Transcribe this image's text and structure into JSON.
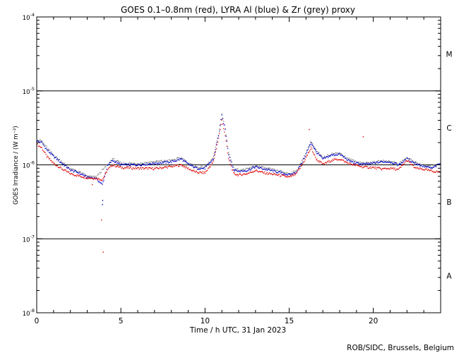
{
  "chart_data": {
    "type": "scatter",
    "title": "GOES 0.1–0.8nm (red), LYRA Al (blue) & Zr (grey) proxy",
    "xlabel": "Time / h UTC, 31 Jan 2023",
    "ylabel": "GOES Irradiance / (W m⁻²)",
    "credit": "ROB/SIDC, Brussels, Belgium",
    "xlim": [
      0,
      24
    ],
    "ylim_log10": [
      -8,
      -4
    ],
    "y_scale": "log",
    "x_ticks": [
      {
        "v": 0,
        "label": "0"
      },
      {
        "v": 5,
        "label": "5"
      },
      {
        "v": 10,
        "label": "10"
      },
      {
        "v": 15,
        "label": "15"
      },
      {
        "v": 20,
        "label": "20"
      }
    ],
    "y_ticks": [
      {
        "exp": -8,
        "label": "10",
        "sup": "-8"
      },
      {
        "exp": -7,
        "label": "10",
        "sup": "-7"
      },
      {
        "exp": -6,
        "label": "10",
        "sup": "-6"
      },
      {
        "exp": -5,
        "label": "10",
        "sup": "-5"
      },
      {
        "exp": -4,
        "label": "10",
        "sup": "-4"
      }
    ],
    "flare_classes": [
      {
        "label": "A",
        "exp": -7.5
      },
      {
        "label": "B",
        "exp": -6.5
      },
      {
        "label": "C",
        "exp": -5.5
      },
      {
        "label": "M",
        "exp": -4.5
      }
    ],
    "threshold_lines": [
      -7,
      -6,
      -5
    ],
    "series": [
      {
        "name": "GOES",
        "color": "#e00000",
        "points": [
          [
            0,
            1.9e-06
          ],
          [
            0.3,
            1.7e-06
          ],
          [
            0.6,
            1.3e-06
          ],
          [
            1,
            1.05e-06
          ],
          [
            1.5,
            8.8e-07
          ],
          [
            2,
            7.6e-07
          ],
          [
            2.5,
            7.1e-07
          ],
          [
            3,
            6.7e-07
          ],
          [
            3.5,
            6.6e-07
          ],
          [
            3.9,
            6.3e-07
          ],
          [
            4.2,
            8.5e-07
          ],
          [
            4.5,
            1e-06
          ],
          [
            5,
            9.2e-07
          ],
          [
            6,
            9e-07
          ],
          [
            7,
            8.9e-07
          ],
          [
            8,
            9.5e-07
          ],
          [
            8.6,
            1e-06
          ],
          [
            9,
            8.9e-07
          ],
          [
            9.5,
            7.9e-07
          ],
          [
            10,
            7.8e-07
          ],
          [
            10.5,
            1.1e-06
          ],
          [
            10.8,
            2.3e-06
          ],
          [
            11,
            4e-06
          ],
          [
            11.2,
            2.5e-06
          ],
          [
            11.4,
            1.2e-06
          ],
          [
            11.7,
            7.6e-07
          ],
          [
            12,
            7.3e-07
          ],
          [
            12.5,
            7.6e-07
          ],
          [
            13,
            8.4e-07
          ],
          [
            13.5,
            7.8e-07
          ],
          [
            14,
            7.5e-07
          ],
          [
            14.5,
            7.2e-07
          ],
          [
            15,
            6.8e-07
          ],
          [
            15.4,
            7.5e-07
          ],
          [
            15.7,
            9.4e-07
          ],
          [
            16,
            1.25e-06
          ],
          [
            16.3,
            1.7e-06
          ],
          [
            16.6,
            1.2e-06
          ],
          [
            17,
            1.02e-06
          ],
          [
            17.5,
            1.15e-06
          ],
          [
            18,
            1.2e-06
          ],
          [
            18.5,
            1.05e-06
          ],
          [
            19,
            9.8e-07
          ],
          [
            19.5,
            9.3e-07
          ],
          [
            20,
            9.2e-07
          ],
          [
            20.5,
            8.8e-07
          ],
          [
            21,
            9e-07
          ],
          [
            21.5,
            8.6e-07
          ],
          [
            22,
            1.15e-06
          ],
          [
            22.5,
            9e-07
          ],
          [
            23,
            8.7e-07
          ],
          [
            23.5,
            8.2e-07
          ],
          [
            24,
            8e-07
          ]
        ],
        "isolated": [
          [
            3.3,
            5.4e-07
          ],
          [
            3.85,
            1.8e-07
          ],
          [
            3.95,
            6.6e-08
          ],
          [
            16.2,
            3e-06
          ],
          [
            19.4,
            2.4e-06
          ]
        ]
      },
      {
        "name": "LYRA Al",
        "color": "#0000cc",
        "points": [
          [
            0,
            2.1e-06
          ],
          [
            0.3,
            2e-06
          ],
          [
            0.6,
            1.6e-06
          ],
          [
            1,
            1.3e-06
          ],
          [
            1.5,
            1.05e-06
          ],
          [
            2,
            8.5e-07
          ],
          [
            2.5,
            7.8e-07
          ],
          [
            3,
            6.8e-07
          ],
          [
            3.5,
            6.6e-07
          ],
          [
            3.9,
            5.4e-07
          ],
          [
            4.2,
            9.6e-07
          ],
          [
            4.5,
            1.15e-06
          ],
          [
            5,
            1e-06
          ],
          [
            6,
            1e-06
          ],
          [
            7,
            1.05e-06
          ],
          [
            8,
            1.1e-06
          ],
          [
            8.6,
            1.2e-06
          ],
          [
            9,
            1.02e-06
          ],
          [
            9.5,
            9e-07
          ],
          [
            10,
            9e-07
          ],
          [
            10.5,
            1.2e-06
          ],
          [
            10.8,
            2.5e-06
          ],
          [
            11,
            4.6e-06
          ],
          [
            11.2,
            3e-06
          ],
          [
            11.4,
            1.4e-06
          ],
          [
            11.7,
            8.6e-07
          ],
          [
            12,
            8.2e-07
          ],
          [
            12.5,
            8.4e-07
          ],
          [
            13,
            9.4e-07
          ],
          [
            13.5,
            8.8e-07
          ],
          [
            14,
            8.3e-07
          ],
          [
            14.5,
            7.8e-07
          ],
          [
            15,
            7.3e-07
          ],
          [
            15.4,
            7.9e-07
          ],
          [
            15.7,
            1e-06
          ],
          [
            16,
            1.4e-06
          ],
          [
            16.3,
            2e-06
          ],
          [
            16.6,
            1.5e-06
          ],
          [
            17,
            1.2e-06
          ],
          [
            17.5,
            1.35e-06
          ],
          [
            18,
            1.4e-06
          ],
          [
            18.5,
            1.15e-06
          ],
          [
            19,
            1.05e-06
          ],
          [
            19.5,
            1.02e-06
          ],
          [
            20,
            1.05e-06
          ],
          [
            20.5,
            1.1e-06
          ],
          [
            21,
            1.1e-06
          ],
          [
            21.5,
            1e-06
          ],
          [
            22,
            1.2e-06
          ],
          [
            22.5,
            1.05e-06
          ],
          [
            23,
            9.5e-07
          ],
          [
            23.5,
            9e-07
          ],
          [
            24,
            1.05e-06
          ]
        ],
        "isolated": [
          [
            3.9,
            2.9e-07
          ],
          [
            3.92,
            3.3e-07
          ]
        ]
      },
      {
        "name": "Zr",
        "color": "#888888",
        "points": [
          [
            0,
            2.2e-06
          ],
          [
            0.3,
            2.1e-06
          ],
          [
            0.6,
            1.7e-06
          ],
          [
            1,
            1.35e-06
          ],
          [
            1.5,
            1.1e-06
          ],
          [
            2,
            8.8e-07
          ],
          [
            2.5,
            8.1e-07
          ],
          [
            3,
            7e-07
          ],
          [
            3.5,
            6.8e-07
          ],
          [
            4.2,
            1e-06
          ],
          [
            4.5,
            1.2e-06
          ],
          [
            5,
            1.05e-06
          ],
          [
            6,
            1.04e-06
          ],
          [
            7,
            1.1e-06
          ],
          [
            8,
            1.15e-06
          ],
          [
            8.6,
            1.25e-06
          ],
          [
            9,
            1.05e-06
          ],
          [
            9.5,
            9.3e-07
          ],
          [
            10,
            9.3e-07
          ],
          [
            10.5,
            1.25e-06
          ],
          [
            10.8,
            2.6e-06
          ],
          [
            11,
            4.8e-06
          ],
          [
            11.2,
            3.1e-06
          ],
          [
            11.4,
            1.5e-06
          ],
          [
            11.7,
            9e-07
          ],
          [
            12,
            8.5e-07
          ],
          [
            12.5,
            8.7e-07
          ],
          [
            13,
            9.7e-07
          ],
          [
            13.5,
            9.1e-07
          ],
          [
            14,
            8.6e-07
          ],
          [
            14.5,
            8.1e-07
          ],
          [
            15,
            7.6e-07
          ],
          [
            15.4,
            8.2e-07
          ],
          [
            15.7,
            1.05e-06
          ],
          [
            16,
            1.45e-06
          ],
          [
            16.3,
            2.1e-06
          ],
          [
            16.6,
            1.55e-06
          ],
          [
            17,
            1.25e-06
          ],
          [
            17.5,
            1.4e-06
          ],
          [
            18,
            1.45e-06
          ],
          [
            18.5,
            1.2e-06
          ],
          [
            19,
            1.1e-06
          ],
          [
            19.5,
            1.05e-06
          ],
          [
            20,
            1.08e-06
          ],
          [
            20.5,
            1.12e-06
          ],
          [
            21,
            1.12e-06
          ],
          [
            21.5,
            1.03e-06
          ],
          [
            22,
            1.25e-06
          ],
          [
            22.5,
            1.08e-06
          ],
          [
            23,
            9.8e-07
          ],
          [
            23.5,
            9.3e-07
          ],
          [
            24,
            1.08e-06
          ]
        ],
        "isolated": []
      }
    ]
  }
}
